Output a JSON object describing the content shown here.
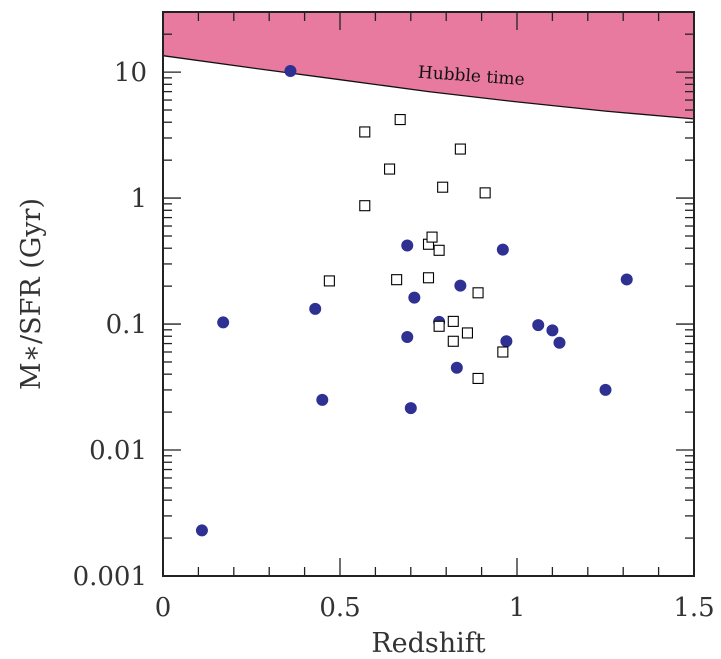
{
  "chart_data": {
    "type": "scatter",
    "x_scale": "linear",
    "y_scale": "log",
    "xlim": [
      0,
      1.5
    ],
    "ylim": [
      0.001,
      30
    ],
    "xlabel": "Redshift",
    "ylabel": "M∗/SFR (Gyr)",
    "x_ticks": [
      {
        "value": 0,
        "label": "0"
      },
      {
        "value": 0.5,
        "label": "0.5"
      },
      {
        "value": 1,
        "label": "1"
      },
      {
        "value": 1.5,
        "label": "1.5"
      }
    ],
    "y_ticks": [
      {
        "value": 0.001,
        "label": "0.001"
      },
      {
        "value": 0.01,
        "label": "0.01"
      },
      {
        "value": 0.1,
        "label": "0.1"
      },
      {
        "value": 1,
        "label": "1"
      },
      {
        "value": 10,
        "label": "10"
      }
    ],
    "grid": false,
    "annotation": {
      "text": "Hubble time",
      "color": "#E8799F"
    },
    "hubble_time_curve": {
      "x": [
        0,
        0.25,
        0.5,
        0.75,
        1.0,
        1.25,
        1.5
      ],
      "y": [
        13.5,
        10.8,
        8.7,
        7.0,
        5.8,
        4.9,
        4.25
      ]
    },
    "series": [
      {
        "marker": "filled-circle",
        "color": "#2E3192",
        "points": [
          {
            "x": 0.11,
            "y": 0.0023
          },
          {
            "x": 0.17,
            "y": 0.103
          },
          {
            "x": 0.36,
            "y": 10.2
          },
          {
            "x": 0.43,
            "y": 0.132
          },
          {
            "x": 0.45,
            "y": 0.025
          },
          {
            "x": 0.69,
            "y": 0.42
          },
          {
            "x": 0.69,
            "y": 0.079
          },
          {
            "x": 0.7,
            "y": 0.0215
          },
          {
            "x": 0.71,
            "y": 0.162
          },
          {
            "x": 0.78,
            "y": 0.104
          },
          {
            "x": 0.83,
            "y": 0.045
          },
          {
            "x": 0.84,
            "y": 0.202
          },
          {
            "x": 0.96,
            "y": 0.39
          },
          {
            "x": 0.97,
            "y": 0.073
          },
          {
            "x": 1.06,
            "y": 0.098
          },
          {
            "x": 1.1,
            "y": 0.089
          },
          {
            "x": 1.12,
            "y": 0.071
          },
          {
            "x": 1.25,
            "y": 0.03
          },
          {
            "x": 1.31,
            "y": 0.226
          }
        ]
      },
      {
        "marker": "open-square",
        "color": "#000000",
        "points": [
          {
            "x": 0.57,
            "y": 3.35
          },
          {
            "x": 0.57,
            "y": 0.87
          },
          {
            "x": 0.64,
            "y": 1.7
          },
          {
            "x": 0.67,
            "y": 4.2
          },
          {
            "x": 0.47,
            "y": 0.22
          },
          {
            "x": 0.66,
            "y": 0.225
          },
          {
            "x": 0.75,
            "y": 0.43
          },
          {
            "x": 0.76,
            "y": 0.49
          },
          {
            "x": 0.75,
            "y": 0.233
          },
          {
            "x": 0.78,
            "y": 0.385
          },
          {
            "x": 0.79,
            "y": 1.22
          },
          {
            "x": 0.84,
            "y": 2.45
          },
          {
            "x": 0.91,
            "y": 1.1
          },
          {
            "x": 0.89,
            "y": 0.177
          },
          {
            "x": 0.78,
            "y": 0.096
          },
          {
            "x": 0.82,
            "y": 0.105
          },
          {
            "x": 0.82,
            "y": 0.073
          },
          {
            "x": 0.86,
            "y": 0.085
          },
          {
            "x": 0.89,
            "y": 0.037
          },
          {
            "x": 0.96,
            "y": 0.06
          }
        ]
      }
    ]
  }
}
